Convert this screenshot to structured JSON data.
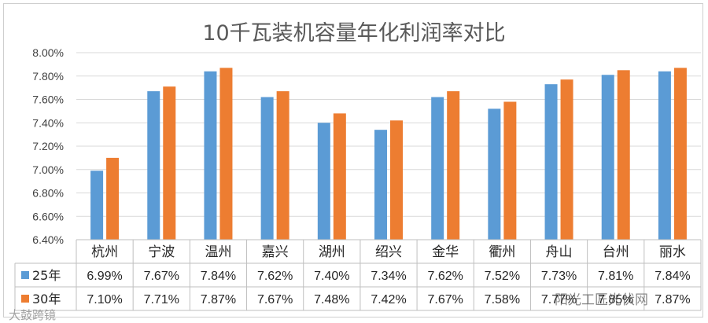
{
  "chart_data": {
    "type": "bar",
    "title": "10千瓦装机容量年化利润率对比",
    "categories": [
      "杭州",
      "宁波",
      "温州",
      "嘉兴",
      "湖州",
      "绍兴",
      "金华",
      "衢州",
      "舟山",
      "台州",
      "丽水"
    ],
    "series": [
      {
        "name": "25年",
        "color": "#5b9bd5",
        "values": [
          6.99,
          7.67,
          7.84,
          7.62,
          7.4,
          7.34,
          7.62,
          7.52,
          7.73,
          7.81,
          7.84
        ],
        "labels": [
          "6.99%",
          "7.67%",
          "7.84%",
          "7.62%",
          "7.40%",
          "7.34%",
          "7.62%",
          "7.52%",
          "7.73%",
          "7.81%",
          "7.84%"
        ]
      },
      {
        "name": "30年",
        "color": "#ed7d31",
        "values": [
          7.1,
          7.71,
          7.87,
          7.67,
          7.48,
          7.42,
          7.67,
          7.58,
          7.77,
          7.85,
          7.87
        ],
        "labels": [
          "7.10%",
          "7.71%",
          "7.87%",
          "7.67%",
          "7.48%",
          "7.42%",
          "7.67%",
          "7.58%",
          "7.77%",
          "7.85%",
          "7.87%"
        ]
      }
    ],
    "ylim": [
      6.4,
      8.0
    ],
    "yticks": [
      "8.00%",
      "7.80%",
      "7.60%",
      "7.40%",
      "7.20%",
      "7.00%",
      "6.80%",
      "6.60%",
      "6.40%"
    ],
    "ytick_values": [
      8.0,
      7.8,
      7.6,
      7.4,
      7.2,
      7.0,
      6.8,
      6.6,
      6.4
    ],
    "grid": true,
    "legend": "data-table"
  },
  "watermarks": {
    "left": "大鼓跨镜",
    "right": "阳光工匠光伏网"
  }
}
